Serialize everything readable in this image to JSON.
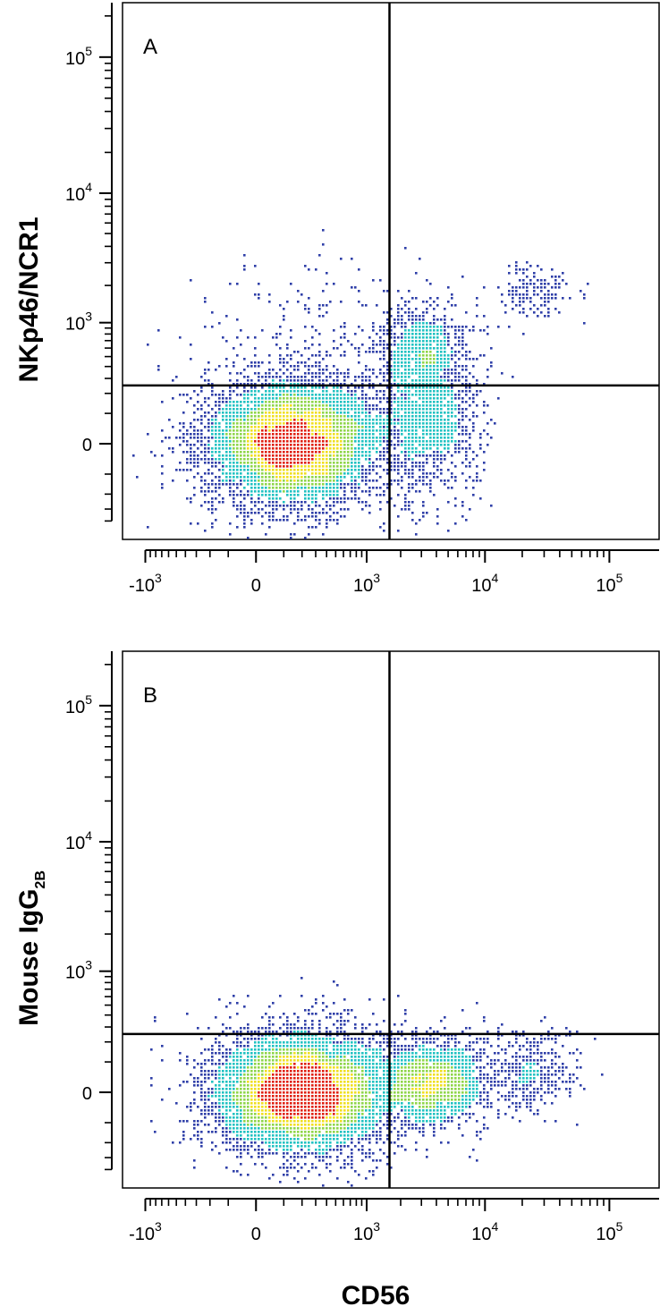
{
  "chart_data": [
    {
      "type": "scatter",
      "subtype": "flow-cytometry-density-dot-plot",
      "panel_label": "A",
      "ylabel": "NKp46/NCR1",
      "xlabel": "",
      "x_scale": "biexponential",
      "y_scale": "biexponential",
      "xlim": [
        -1600,
        250000
      ],
      "ylim": [
        -600,
        250000
      ],
      "x_ticks": [
        {
          "value": -1000,
          "base": "-10",
          "exp": "3"
        },
        {
          "value": 0,
          "base": "0",
          "exp": ""
        },
        {
          "value": 1000,
          "base": "10",
          "exp": "3"
        },
        {
          "value": 10000,
          "base": "10",
          "exp": "4"
        },
        {
          "value": 100000,
          "base": "10",
          "exp": "5"
        }
      ],
      "y_ticks": [
        {
          "value": 0,
          "base": "0",
          "exp": ""
        },
        {
          "value": 1000,
          "base": "10",
          "exp": "3"
        },
        {
          "value": 10000,
          "base": "10",
          "exp": "4"
        },
        {
          "value": 100000,
          "base": "10",
          "exp": "5"
        }
      ],
      "quadrant_gate": {
        "x": 1600,
        "y": 250
      },
      "populations": [
        {
          "center": [
            150,
            0
          ],
          "spread": [
            0.85,
            0.8
          ],
          "weight": 0.74
        },
        {
          "center": [
            3500,
            120
          ],
          "spread": [
            0.5,
            1.1
          ],
          "weight": 0.16
        },
        {
          "center": [
            3000,
            600
          ],
          "spread": [
            0.4,
            0.5
          ],
          "weight": 0.06
        },
        {
          "center": [
            25000,
            1800
          ],
          "spread": [
            0.35,
            0.3
          ],
          "weight": 0.02
        },
        {
          "center": [
            300,
            900
          ],
          "spread": [
            1.1,
            0.9
          ],
          "weight": 0.02
        }
      ],
      "colors": {
        "low": "#2f3fa8",
        "mid": "#21c2c2",
        "midhigh": "#8fd64a",
        "high": "#f0e020",
        "peak": "#e02010"
      }
    },
    {
      "type": "scatter",
      "subtype": "flow-cytometry-density-dot-plot",
      "panel_label": "B",
      "ylabel": "Mouse IgG",
      "ylabel_sub": "2B",
      "xlabel": "CD56",
      "x_scale": "biexponential",
      "y_scale": "biexponential",
      "xlim": [
        -1600,
        250000
      ],
      "ylim": [
        -600,
        250000
      ],
      "x_ticks": [
        {
          "value": -1000,
          "base": "-10",
          "exp": "3"
        },
        {
          "value": 0,
          "base": "0",
          "exp": ""
        },
        {
          "value": 1000,
          "base": "10",
          "exp": "3"
        },
        {
          "value": 10000,
          "base": "10",
          "exp": "4"
        },
        {
          "value": 100000,
          "base": "10",
          "exp": "5"
        }
      ],
      "y_ticks": [
        {
          "value": 0,
          "base": "0",
          "exp": ""
        },
        {
          "value": 1000,
          "base": "10",
          "exp": "3"
        },
        {
          "value": 10000,
          "base": "10",
          "exp": "4"
        },
        {
          "value": 100000,
          "base": "10",
          "exp": "5"
        }
      ],
      "quadrant_gate": {
        "x": 1600,
        "y": 250
      },
      "populations": [
        {
          "center": [
            200,
            0
          ],
          "spread": [
            0.85,
            0.75
          ],
          "weight": 0.76
        },
        {
          "center": [
            4000,
            30
          ],
          "spread": [
            0.55,
            0.55
          ],
          "weight": 0.2
        },
        {
          "center": [
            25000,
            60
          ],
          "spread": [
            0.4,
            0.5
          ],
          "weight": 0.04
        }
      ],
      "colors": {
        "low": "#2f3fa8",
        "mid": "#21c2c2",
        "midhigh": "#8fd64a",
        "high": "#f0e020",
        "peak": "#e02010"
      }
    }
  ]
}
